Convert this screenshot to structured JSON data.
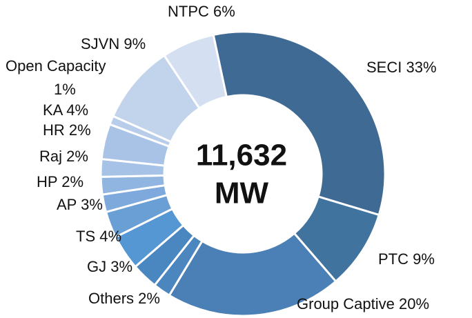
{
  "chart_data": {
    "type": "donut",
    "categories": [
      "SECI",
      "PTC",
      "Group Captive",
      "Others",
      "GJ",
      "TS",
      "AP",
      "HP",
      "Raj",
      "HR",
      "KA",
      "Open Capacity",
      "SJVN",
      "NTPC"
    ],
    "values": [
      33,
      9,
      20,
      2,
      3,
      4,
      3,
      2,
      2,
      2,
      4,
      1,
      9,
      6
    ],
    "value_labels": [
      "33%",
      "9%",
      "20%",
      "2%",
      "3%",
      "4%",
      "3%",
      "2%",
      "2%",
      "2%",
      "4%",
      "1%",
      "9%",
      "6%"
    ],
    "colors": [
      "#3e6a94",
      "#41739f",
      "#4a80b5",
      "#4c86bf",
      "#4a87c0",
      "#5597d3",
      "#6a9fd6",
      "#7ea9dc",
      "#90b5e0",
      "#a6c2e6",
      "#a9c3e6",
      "#b8cdea",
      "#c2d3ec",
      "#d4e0f2"
    ],
    "center_text": "11,632",
    "center_unit": "MW"
  }
}
